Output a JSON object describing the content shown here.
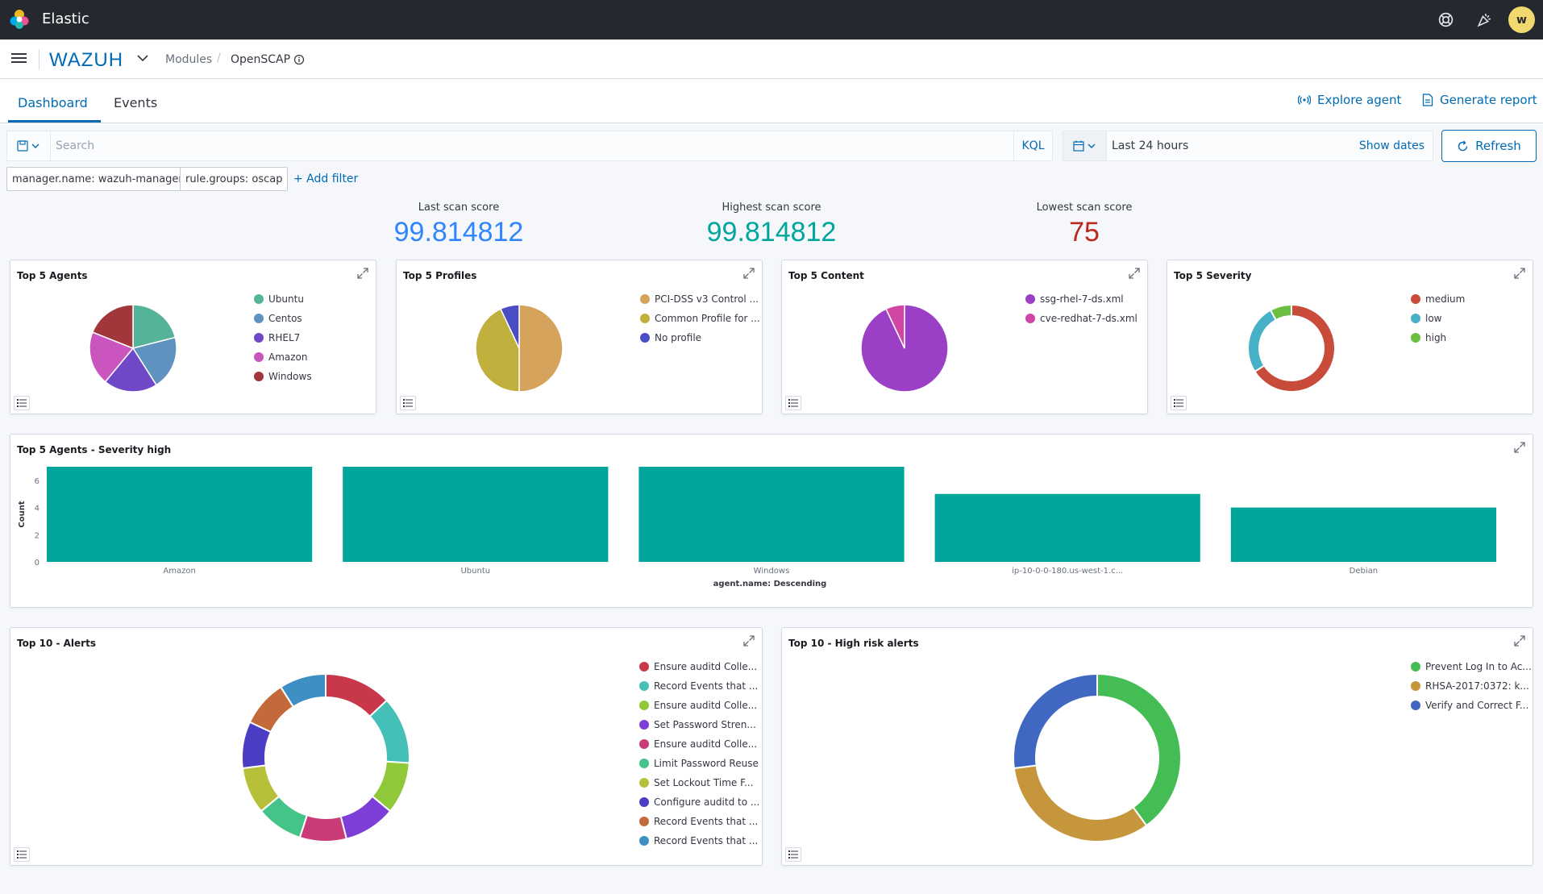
{
  "app": {
    "title": "Elastic",
    "user_initial": "w"
  },
  "header": {
    "brand": "WAZUH",
    "breadcrumb": [
      "Modules",
      "OpenSCAP"
    ]
  },
  "tabs": [
    {
      "label": "Dashboard",
      "active": true
    },
    {
      "label": "Events",
      "active": false
    }
  ],
  "actions": {
    "explore_agent": "Explore agent",
    "generate_report": "Generate report"
  },
  "search": {
    "placeholder": "Search",
    "value": "",
    "kql": "KQL"
  },
  "date": {
    "range": "Last 24 hours",
    "show_dates": "Show dates",
    "refresh": "Refresh"
  },
  "filters": [
    "manager.name: wazuh-manager",
    "rule.groups: oscap"
  ],
  "add_filter": "+ Add filter",
  "metrics": [
    {
      "label": "Last scan score",
      "value": "99.814812",
      "color": "#3185fc"
    },
    {
      "label": "Highest scan score",
      "value": "99.814812",
      "color": "#00a69b"
    },
    {
      "label": "Lowest scan score",
      "value": "75",
      "color": "#bd271e"
    }
  ],
  "panels": {
    "top5_agents": {
      "title": "Top 5 Agents",
      "chart_data": {
        "type": "pie",
        "labels": [
          "Ubuntu",
          "Centos",
          "RHEL7",
          "Amazon",
          "Windows"
        ],
        "values": [
          21,
          20,
          20,
          20,
          19
        ],
        "colors": [
          "#54b399",
          "#6092c0",
          "#6e48c7",
          "#ca55bf",
          "#a1363b"
        ]
      }
    },
    "top5_profiles": {
      "title": "Top 5 Profiles",
      "chart_data": {
        "type": "pie",
        "labels": [
          "PCI-DSS v3 Control ...",
          "Common Profile for ...",
          "No profile"
        ],
        "values": [
          50,
          43,
          7
        ],
        "colors": [
          "#d6a35c",
          "#c0b13e",
          "#4c4dc4"
        ]
      }
    },
    "top5_content": {
      "title": "Top 5 Content",
      "chart_data": {
        "type": "pie",
        "labels": [
          "ssg-rhel-7-ds.xml",
          "cve-redhat-7-ds.xml"
        ],
        "values": [
          93,
          7
        ],
        "colors": [
          "#9c3fc7",
          "#d146a5"
        ]
      }
    },
    "top5_severity": {
      "title": "Top 5 Severity",
      "chart_data": {
        "type": "donut",
        "labels": [
          "medium",
          "low",
          "high"
        ],
        "values": [
          66,
          26,
          8
        ],
        "colors": [
          "#c94c3a",
          "#45b0c6",
          "#6cbf40"
        ]
      }
    },
    "severity_high": {
      "title": "Top 5 Agents - Severity high",
      "chart_data": {
        "type": "bar",
        "categories": [
          "Amazon",
          "Ubuntu",
          "Windows",
          "ip-10-0-0-180.us-west-1.c...",
          "Debian"
        ],
        "values": [
          7,
          7,
          7,
          5,
          4
        ],
        "ylim": [
          0,
          7
        ],
        "yticks": [
          0,
          2,
          4,
          6
        ],
        "ylabel": "Count",
        "xlabel": "agent.name: Descending",
        "color": "#00a69b"
      }
    },
    "top10_alerts": {
      "title": "Top 10 - Alerts",
      "chart_data": {
        "type": "donut",
        "labels": [
          "Ensure auditd Colle...",
          "Record Events that ...",
          "Ensure auditd Colle...",
          "Set Password Stren...",
          "Ensure auditd Colle...",
          "Limit Password Reuse",
          "Set Lockout Time F...",
          "Configure auditd to ...",
          "Record Events that ...",
          "Record Events that ..."
        ],
        "values": [
          13,
          13,
          10,
          10,
          9,
          9,
          9,
          9,
          9,
          9
        ],
        "colors": [
          "#c8384a",
          "#45c0b8",
          "#8fc93a",
          "#7c3ed6",
          "#c93c77",
          "#45c48a",
          "#b8c03a",
          "#4b3dc4",
          "#c46a3a",
          "#3d8fc4"
        ]
      }
    },
    "top10_high": {
      "title": "Top 10 - High risk alerts",
      "chart_data": {
        "type": "donut",
        "labels": [
          "Prevent Log In to Ac...",
          "RHSA-2017:0372: k...",
          "Verify and Correct F..."
        ],
        "values": [
          40,
          33,
          27
        ],
        "colors": [
          "#45bd55",
          "#c5963c",
          "#4068c2"
        ]
      }
    }
  }
}
